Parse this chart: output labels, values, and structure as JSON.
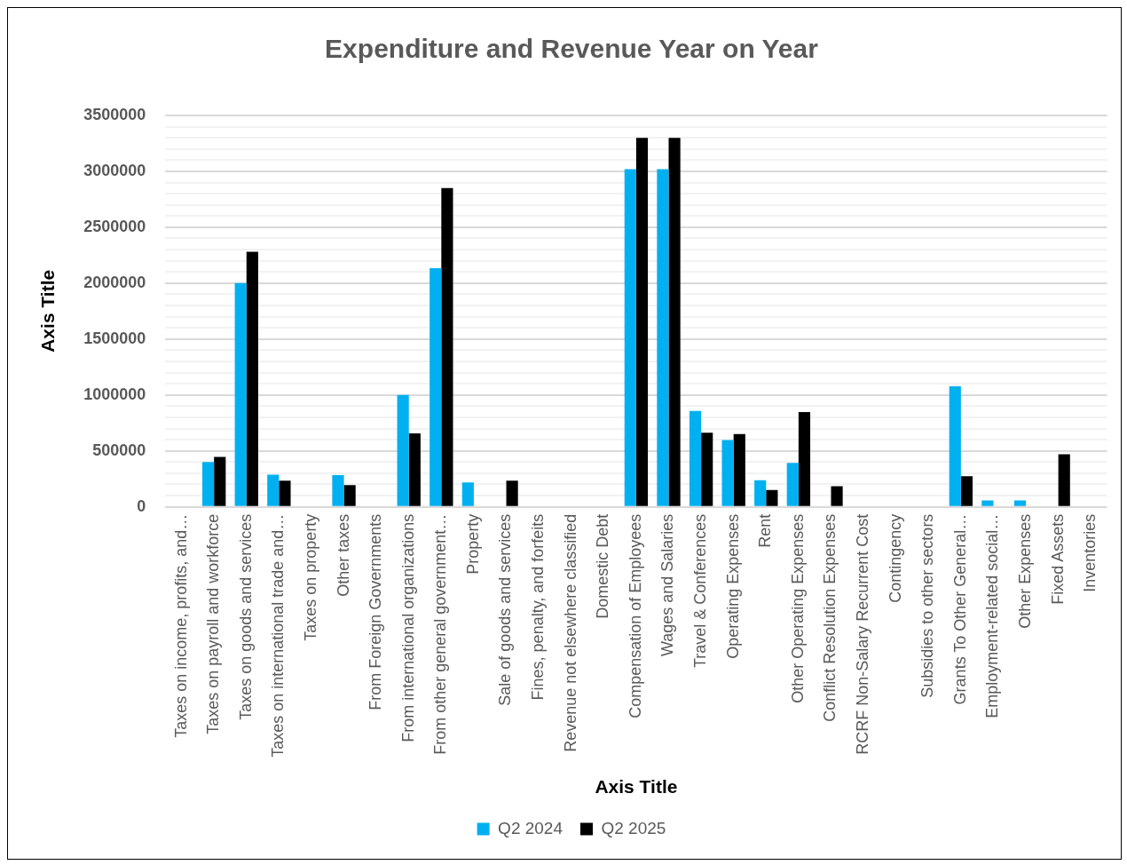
{
  "chart_data": {
    "type": "bar",
    "title": "Expenditure and Revenue Year on Year",
    "xlabel": "Axis Title",
    "ylabel": "Axis Title",
    "categories": [
      "Taxes on income, profits, and…",
      "Taxes on payroll and workforce",
      "Taxes on goods and services",
      "Taxes on international trade and…",
      "Taxes on property",
      "Other taxes",
      "From Foreign Governments",
      "From international organizations",
      "From other general government…",
      "Property",
      "Sale of goods and services",
      "Fines, penalty, and forfeits",
      "Revenue not elsewhere classified",
      "Domestic Debt",
      "Compensation of Employees",
      "Wages and Salaries",
      "Travel & Conferences",
      "Operating Expenses",
      "Rent",
      "Other Operating Expenses",
      "Conflict Resolution Expenses",
      "RCRF Non-Salary Recurrent Cost",
      "Contingency",
      "Subsidies to other sectors",
      "Grants To Other General…",
      "Employment-related social…",
      "Other Expenses",
      "Fixed Assets",
      "Inventories"
    ],
    "series": [
      {
        "name": "Q2 2024",
        "color": "#00b0f0",
        "values": [
          null,
          400000,
          2000000,
          287000,
          null,
          283000,
          null,
          1000000,
          2133000,
          217000,
          null,
          null,
          null,
          null,
          3020000,
          3020000,
          857000,
          597000,
          237000,
          393000,
          null,
          null,
          null,
          null,
          1077000,
          57000,
          57000,
          null,
          null
        ]
      },
      {
        "name": "Q2 2025",
        "color": "#000000",
        "values": [
          null,
          445000,
          2280000,
          233000,
          null,
          193000,
          null,
          657000,
          2850000,
          null,
          233000,
          null,
          null,
          null,
          3300000,
          3300000,
          663000,
          650000,
          150000,
          847000,
          183000,
          null,
          null,
          null,
          273000,
          null,
          null,
          470000,
          null
        ]
      }
    ],
    "ylim": [
      0,
      3500000
    ],
    "yticks": [
      0,
      {
        "value": 100000,
        "label": null
      },
      {
        "value": 200000,
        "label": null
      },
      {
        "value": 300000,
        "label": null
      },
      {
        "value": 400000,
        "label": null
      },
      500000,
      {
        "value": 600000,
        "label": null
      },
      {
        "value": 700000,
        "label": null
      },
      {
        "value": 800000,
        "label": null
      },
      {
        "value": 900000,
        "label": null
      },
      1000000,
      {
        "value": 1100000,
        "label": null
      },
      {
        "value": 1200000,
        "label": null
      },
      {
        "value": 1300000,
        "label": null
      },
      {
        "value": 1400000,
        "label": null
      },
      1500000,
      {
        "value": 1600000,
        "label": null
      },
      {
        "value": 1700000,
        "label": null
      },
      {
        "value": 1800000,
        "label": null
      },
      {
        "value": 1900000,
        "label": null
      },
      2000000,
      {
        "value": 2100000,
        "label": null
      },
      {
        "value": 2200000,
        "label": null
      },
      {
        "value": 2300000,
        "label": null
      },
      {
        "value": 2400000,
        "label": null
      },
      2500000,
      {
        "value": 2600000,
        "label": null
      },
      {
        "value": 2700000,
        "label": null
      },
      {
        "value": 2800000,
        "label": null
      },
      {
        "value": 2900000,
        "label": null
      },
      3000000,
      {
        "value": 3100000,
        "label": null
      },
      {
        "value": 3200000,
        "label": null
      },
      {
        "value": 3300000,
        "label": null
      },
      {
        "value": 3400000,
        "label": null
      },
      3500000
    ],
    "grid": "y",
    "legend": "bottom"
  }
}
